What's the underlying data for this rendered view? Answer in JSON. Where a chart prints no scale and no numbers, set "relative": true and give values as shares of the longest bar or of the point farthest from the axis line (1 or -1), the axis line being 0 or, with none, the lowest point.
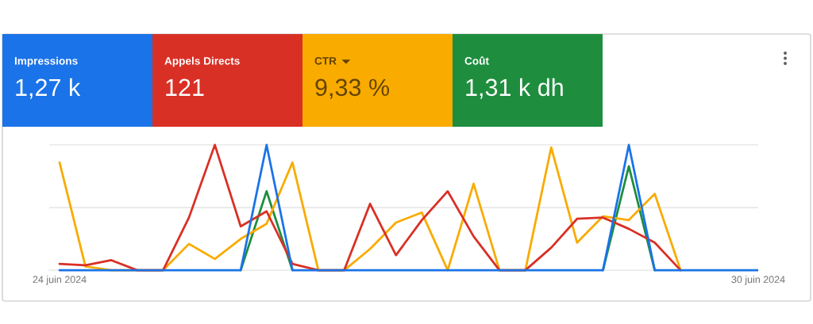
{
  "chart_data": {
    "type": "line",
    "relative": true,
    "legend": "top left",
    "tick_labels": "x",
    "categories": [
      "24 juin 2024",
      null,
      null,
      null,
      null,
      null,
      null,
      null,
      null,
      null,
      null,
      null,
      null,
      null,
      null,
      null,
      null,
      null,
      null,
      null,
      null,
      null,
      null,
      null,
      null,
      null,
      null,
      "30 juin 2024"
    ],
    "series": [
      {
        "name": "Impressions",
        "color": "#1a73e8",
        "values": [
          0,
          0,
          0,
          0,
          0,
          0,
          0,
          0,
          1,
          0,
          0,
          0,
          0,
          0,
          0,
          0,
          0,
          0,
          0,
          0,
          0,
          0,
          1,
          0,
          0,
          0,
          0,
          0
        ]
      },
      {
        "name": "Appels Directs",
        "color": "#d93025",
        "values": [
          0.05,
          0.04,
          0.08,
          0,
          0,
          0.42,
          1,
          0.35,
          0.47,
          0.05,
          0,
          0,
          0.53,
          0.12,
          0.4,
          0.63,
          0.27,
          0,
          0,
          0.18,
          0.41,
          0.42,
          0.33,
          0.22,
          0,
          null,
          null,
          null
        ]
      },
      {
        "name": "CTR",
        "color": "#f9ab00",
        "values": [
          0.86,
          0.03,
          0,
          0,
          0,
          0.21,
          0.09,
          0.25,
          0.37,
          0.86,
          0,
          0,
          0.17,
          0.38,
          0.46,
          0,
          0.69,
          0,
          0,
          0.98,
          0.22,
          0.43,
          0.4,
          0.61,
          0,
          null,
          null,
          null
        ]
      },
      {
        "name": "Coût",
        "color": "#1e8e3e",
        "values": [
          null,
          null,
          null,
          null,
          null,
          null,
          null,
          0,
          0.63,
          0,
          null,
          null,
          null,
          null,
          null,
          null,
          null,
          null,
          null,
          null,
          null,
          0,
          0.83,
          0,
          null,
          null,
          null,
          null
        ]
      }
    ],
    "ref_lines": [
      {
        "axis": "y",
        "value": 0.5,
        "color": "#e4e4e4"
      },
      {
        "axis": "y",
        "value": 1,
        "color": "#e4e4e4"
      }
    ],
    "annotations": [
      "1,27 k",
      "121",
      "9,33 %",
      "1,31 k dh"
    ]
  }
}
